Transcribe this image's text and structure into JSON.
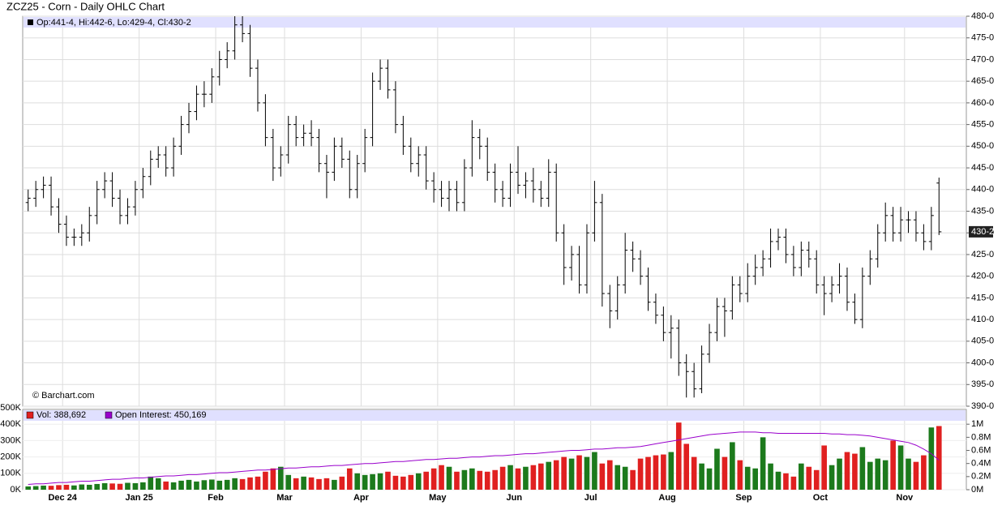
{
  "chart_data": [
    {
      "type": "ohlc",
      "title": "ZCZ25 - Corn - Daily OHLC Chart",
      "legend_text": "Op:441-4, Hi:442-6, Lo:429-4, Cl:430-2",
      "watermark": "© Barchart.com",
      "xlim": [
        0,
        120
      ],
      "ylim": [
        390,
        480
      ],
      "grid": true,
      "color": "#000000",
      "yticks": [
        {
          "value": 390,
          "label": "390-0"
        },
        {
          "value": 395,
          "label": "395-0"
        },
        {
          "value": 400,
          "label": "400-0"
        },
        {
          "value": 405,
          "label": "405-0"
        },
        {
          "value": 410,
          "label": "410-0"
        },
        {
          "value": 415,
          "label": "415-0"
        },
        {
          "value": 420,
          "label": "420-0"
        },
        {
          "value": 425,
          "label": "425-0"
        },
        {
          "value": 430,
          "label": "430-0"
        },
        {
          "value": 435,
          "label": "435-0"
        },
        {
          "value": 440,
          "label": "440-0"
        },
        {
          "value": 445,
          "label": "445-0"
        },
        {
          "value": 450,
          "label": "450-0"
        },
        {
          "value": 455,
          "label": "455-0"
        },
        {
          "value": 460,
          "label": "460-0"
        },
        {
          "value": 465,
          "label": "465-0"
        },
        {
          "value": 470,
          "label": "470-0"
        },
        {
          "value": 475,
          "label": "475-0"
        },
        {
          "value": 480,
          "label": "480-0"
        }
      ],
      "last": {
        "value": 430.25,
        "label": "430-2"
      },
      "ohlc": [
        [
          437,
          440,
          435,
          438
        ],
        [
          438,
          442,
          436,
          440
        ],
        [
          440,
          443,
          438,
          441
        ],
        [
          441,
          443,
          434,
          436
        ],
        [
          436,
          438,
          430,
          432
        ],
        [
          432,
          434,
          427,
          429
        ],
        [
          429,
          431,
          427,
          429
        ],
        [
          429,
          432,
          427,
          430
        ],
        [
          430,
          436,
          428,
          434
        ],
        [
          434,
          442,
          432,
          440
        ],
        [
          440,
          444,
          438,
          442
        ],
        [
          442,
          444,
          436,
          438
        ],
        [
          438,
          440,
          432,
          434
        ],
        [
          434,
          438,
          432,
          436
        ],
        [
          436,
          442,
          434,
          440
        ],
        [
          440,
          445,
          438,
          443
        ],
        [
          443,
          449,
          441,
          447
        ],
        [
          447,
          450,
          445,
          448
        ],
        [
          448,
          450,
          443,
          445
        ],
        [
          445,
          452,
          443,
          450
        ],
        [
          450,
          457,
          448,
          455
        ],
        [
          455,
          460,
          453,
          458
        ],
        [
          458,
          464,
          456,
          462
        ],
        [
          462,
          465,
          459,
          462
        ],
        [
          462,
          468,
          460,
          466
        ],
        [
          466,
          472,
          464,
          470
        ],
        [
          470,
          474,
          468,
          472
        ],
        [
          472,
          480,
          470,
          478
        ],
        [
          478,
          480,
          474,
          476
        ],
        [
          476,
          478,
          466,
          468
        ],
        [
          468,
          470,
          458,
          460
        ],
        [
          460,
          462,
          450,
          452
        ],
        [
          452,
          454,
          442,
          445
        ],
        [
          445,
          450,
          443,
          448
        ],
        [
          448,
          457,
          446,
          455
        ],
        [
          455,
          457,
          450,
          452
        ],
        [
          452,
          455,
          450,
          453
        ],
        [
          453,
          456,
          450,
          452
        ],
        [
          452,
          454,
          444,
          446
        ],
        [
          446,
          448,
          438,
          444
        ],
        [
          444,
          452,
          442,
          450
        ],
        [
          450,
          452,
          445,
          447
        ],
        [
          447,
          449,
          438,
          440
        ],
        [
          440,
          448,
          438,
          446
        ],
        [
          446,
          454,
          444,
          452
        ],
        [
          452,
          467,
          450,
          465
        ],
        [
          465,
          470,
          463,
          468
        ],
        [
          468,
          470,
          461,
          463
        ],
        [
          463,
          465,
          453,
          455
        ],
        [
          455,
          457,
          448,
          450
        ],
        [
          450,
          452,
          444,
          446
        ],
        [
          446,
          450,
          443,
          448
        ],
        [
          448,
          450,
          440,
          442
        ],
        [
          442,
          444,
          437,
          440
        ],
        [
          440,
          442,
          436,
          438
        ],
        [
          438,
          442,
          435,
          440
        ],
        [
          440,
          442,
          435,
          437
        ],
        [
          437,
          447,
          435,
          445
        ],
        [
          445,
          456,
          443,
          452
        ],
        [
          452,
          454,
          447,
          450
        ],
        [
          450,
          452,
          442,
          444
        ],
        [
          444,
          446,
          437,
          440
        ],
        [
          440,
          442,
          436,
          438
        ],
        [
          438,
          446,
          436,
          444
        ],
        [
          444,
          450,
          439,
          441
        ],
        [
          441,
          444,
          438,
          442
        ],
        [
          442,
          445,
          437,
          440
        ],
        [
          440,
          442,
          436,
          438
        ],
        [
          438,
          447,
          436,
          444
        ],
        [
          444,
          446,
          428,
          430
        ],
        [
          430,
          432,
          418,
          422
        ],
        [
          422,
          427,
          419,
          425
        ],
        [
          425,
          427,
          416,
          418
        ],
        [
          418,
          432,
          416,
          430
        ],
        [
          430,
          442,
          428,
          437
        ],
        [
          437,
          439,
          413,
          416
        ],
        [
          416,
          418,
          408,
          412
        ],
        [
          412,
          420,
          410,
          418
        ],
        [
          418,
          430,
          416,
          426
        ],
        [
          426,
          428,
          421,
          424
        ],
        [
          424,
          426,
          418,
          420
        ],
        [
          420,
          422,
          412,
          414
        ],
        [
          414,
          416,
          409,
          411
        ],
        [
          411,
          413,
          405,
          407
        ],
        [
          407,
          411,
          401,
          408
        ],
        [
          408,
          410,
          397,
          400
        ],
        [
          400,
          402,
          392,
          398
        ],
        [
          398,
          400,
          392,
          394
        ],
        [
          394,
          404,
          393,
          402
        ],
        [
          402,
          409,
          400,
          407
        ],
        [
          407,
          415,
          405,
          413
        ],
        [
          413,
          415,
          406,
          412
        ],
        [
          412,
          420,
          410,
          418
        ],
        [
          418,
          420,
          414,
          416
        ],
        [
          416,
          423,
          414,
          420
        ],
        [
          420,
          425,
          418,
          422
        ],
        [
          422,
          426,
          420,
          424
        ],
        [
          424,
          431,
          422,
          428
        ],
        [
          428,
          431,
          426,
          429
        ],
        [
          429,
          431,
          423,
          425
        ],
        [
          425,
          427,
          420,
          422
        ],
        [
          422,
          428,
          420,
          426
        ],
        [
          426,
          428,
          422,
          424
        ],
        [
          424,
          426,
          416,
          418
        ],
        [
          418,
          420,
          411,
          416
        ],
        [
          416,
          420,
          414,
          418
        ],
        [
          418,
          423,
          416,
          420
        ],
        [
          420,
          422,
          412,
          414
        ],
        [
          414,
          416,
          409,
          410
        ],
        [
          410,
          422,
          408,
          420
        ],
        [
          420,
          426,
          418,
          424
        ],
        [
          424,
          432,
          422,
          430
        ],
        [
          430,
          437,
          428,
          434
        ],
        [
          434,
          436,
          428,
          430
        ],
        [
          430,
          436,
          428,
          433
        ],
        [
          433,
          435,
          430,
          433
        ],
        [
          433,
          435,
          428,
          430
        ],
        [
          430,
          432,
          426,
          428
        ],
        [
          428,
          436,
          426,
          434
        ],
        [
          441.5,
          442.75,
          429.5,
          430.25
        ]
      ]
    },
    {
      "type": "bar",
      "xlim": [
        0,
        120
      ],
      "ylim": [
        0,
        500000
      ],
      "y2lim": [
        0,
        1.25
      ],
      "up_color": "#1c7a1c",
      "down_color": "#e02020",
      "xticks": [
        {
          "value": 5,
          "label": "Dec 24"
        },
        {
          "value": 15,
          "label": "Jan 25"
        },
        {
          "value": 25,
          "label": "Feb"
        },
        {
          "value": 34,
          "label": "Mar"
        },
        {
          "value": 44,
          "label": "Apr"
        },
        {
          "value": 54,
          "label": "May"
        },
        {
          "value": 64,
          "label": "Jun"
        },
        {
          "value": 74,
          "label": "Jul"
        },
        {
          "value": 84,
          "label": "Aug"
        },
        {
          "value": 94,
          "label": "Sep"
        },
        {
          "value": 104,
          "label": "Oct"
        },
        {
          "value": 115,
          "label": "Nov"
        }
      ],
      "yticks": [
        {
          "value": 0,
          "label": "0K"
        },
        {
          "value": 100000,
          "label": "100K"
        },
        {
          "value": 200000,
          "label": "200K"
        },
        {
          "value": 300000,
          "label": "300K"
        },
        {
          "value": 400000,
          "label": "400K"
        },
        {
          "value": 500000,
          "label": "500K"
        }
      ],
      "y2ticks": [
        {
          "value": 0,
          "label": "0M"
        },
        {
          "value": 0.2,
          "label": "0.2M"
        },
        {
          "value": 0.4,
          "label": "0.4M"
        },
        {
          "value": 0.6,
          "label": "0.6M"
        },
        {
          "value": 0.8,
          "label": "0.8M"
        },
        {
          "value": 1,
          "label": "1M"
        }
      ],
      "series": [
        {
          "name": "Vol: 388,692",
          "color": "#e02020",
          "values": [
            20000,
            22000,
            25000,
            24000,
            28000,
            30000,
            26000,
            32000,
            30000,
            35000,
            40000,
            38000,
            36000,
            42000,
            40000,
            45000,
            80000,
            70000,
            50000,
            45000,
            55000,
            60000,
            50000,
            58000,
            62000,
            55000,
            60000,
            70000,
            65000,
            75000,
            80000,
            110000,
            130000,
            140000,
            90000,
            70000,
            80000,
            75000,
            65000,
            70000,
            60000,
            80000,
            130000,
            100000,
            90000,
            95000,
            100000,
            110000,
            85000,
            80000,
            90000,
            100000,
            110000,
            130000,
            150000,
            140000,
            110000,
            120000,
            130000,
            115000,
            110000,
            120000,
            140000,
            150000,
            130000,
            140000,
            150000,
            160000,
            170000,
            180000,
            200000,
            190000,
            210000,
            200000,
            230000,
            160000,
            180000,
            150000,
            140000,
            120000,
            190000,
            200000,
            210000,
            215000,
            230000,
            410000,
            280000,
            200000,
            160000,
            130000,
            250000,
            200000,
            290000,
            180000,
            140000,
            130000,
            320000,
            160000,
            110000,
            100000,
            80000,
            160000,
            140000,
            120000,
            270000,
            150000,
            190000,
            230000,
            220000,
            260000,
            170000,
            190000,
            180000,
            300000,
            270000,
            190000,
            170000,
            210000,
            380000,
            388692
          ]
        },
        {
          "name": "Open Interest: 450,169",
          "color": "#9900cc",
          "axis": "y2",
          "values": [
            0.08,
            0.09,
            0.09,
            0.1,
            0.11,
            0.11,
            0.12,
            0.13,
            0.13,
            0.14,
            0.15,
            0.16,
            0.16,
            0.17,
            0.18,
            0.18,
            0.19,
            0.2,
            0.21,
            0.21,
            0.22,
            0.23,
            0.23,
            0.24,
            0.25,
            0.26,
            0.26,
            0.27,
            0.28,
            0.29,
            0.3,
            0.3,
            0.31,
            0.32,
            0.33,
            0.33,
            0.34,
            0.35,
            0.35,
            0.36,
            0.37,
            0.37,
            0.38,
            0.39,
            0.4,
            0.4,
            0.41,
            0.42,
            0.43,
            0.43,
            0.44,
            0.45,
            0.46,
            0.46,
            0.47,
            0.48,
            0.48,
            0.49,
            0.5,
            0.5,
            0.51,
            0.52,
            0.52,
            0.53,
            0.54,
            0.55,
            0.55,
            0.56,
            0.57,
            0.58,
            0.59,
            0.6,
            0.6,
            0.61,
            0.62,
            0.62,
            0.63,
            0.64,
            0.64,
            0.65,
            0.66,
            0.68,
            0.7,
            0.72,
            0.74,
            0.76,
            0.78,
            0.8,
            0.82,
            0.84,
            0.85,
            0.86,
            0.87,
            0.88,
            0.88,
            0.88,
            0.87,
            0.87,
            0.86,
            0.86,
            0.86,
            0.86,
            0.86,
            0.86,
            0.86,
            0.85,
            0.85,
            0.84,
            0.84,
            0.83,
            0.82,
            0.8,
            0.78,
            0.76,
            0.74,
            0.72,
            0.68,
            0.62,
            0.55,
            0.450169
          ]
        }
      ]
    }
  ]
}
